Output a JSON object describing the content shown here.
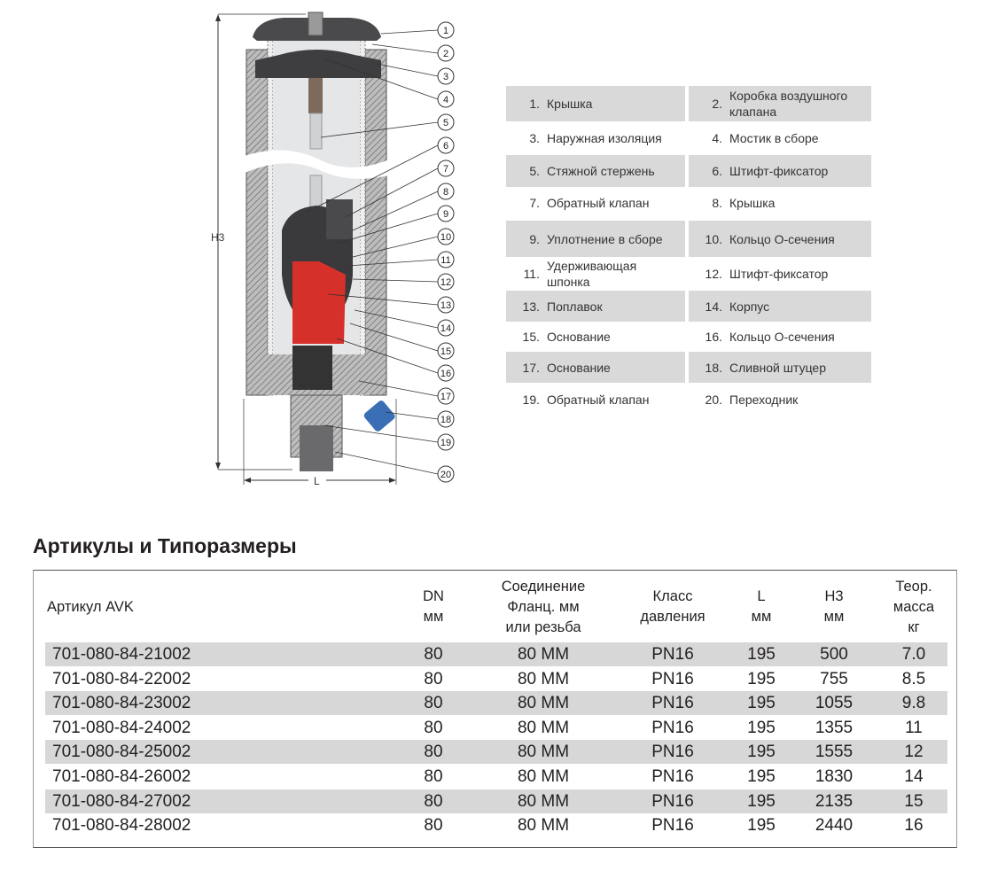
{
  "diagram": {
    "dimension_height_label": "H3",
    "dimension_length_label": "L",
    "callouts": [
      "1",
      "2",
      "3",
      "4",
      "5",
      "6",
      "7",
      "8",
      "9",
      "10",
      "11",
      "12",
      "13",
      "14",
      "15",
      "16",
      "17",
      "18",
      "19",
      "20"
    ],
    "colors": {
      "float": "#d6302b",
      "drain_fitting": "#3a6fb5",
      "body": "#3c3c3e",
      "insulation": "#9a9a9a"
    }
  },
  "legend": {
    "rows": [
      [
        {
          "num": "1.",
          "text": "Крышка"
        },
        {
          "num": "2.",
          "text": "Коробка воздушного клапана"
        }
      ],
      [
        {
          "num": "3.",
          "text": "Наружная изоляция"
        },
        {
          "num": "4.",
          "text": "Мостик в сборе"
        }
      ],
      [
        {
          "num": "5.",
          "text": "Стяжной стержень"
        },
        {
          "num": "6.",
          "text": "Штифт-фиксатор"
        }
      ],
      [
        {
          "num": "7.",
          "text": "Обратный клапан"
        },
        {
          "num": "8.",
          "text": "Крышка"
        }
      ],
      [
        {
          "num": "9.",
          "text": "Уплотнение в сборе"
        },
        {
          "num": "10.",
          "text": "Кольцо О-сечения"
        }
      ],
      [
        {
          "num": "11.",
          "text": "Удерживающая шпонка"
        },
        {
          "num": "12.",
          "text": "Штифт-фиксатор"
        }
      ],
      [
        {
          "num": "13.",
          "text": "Поплавок"
        },
        {
          "num": "14.",
          "text": "Корпус"
        }
      ],
      [
        {
          "num": "15.",
          "text": "Основание"
        },
        {
          "num": "16.",
          "text": "Кольцо О-сечения"
        }
      ],
      [
        {
          "num": "17.",
          "text": "Основание"
        },
        {
          "num": "18.",
          "text": "Сливной штуцер"
        }
      ],
      [
        {
          "num": "19.",
          "text": "Обратный клапан"
        },
        {
          "num": "20.",
          "text": "Переходник"
        }
      ]
    ]
  },
  "table": {
    "title": "Артикулы и Типоразмеры",
    "headers": [
      "Артикул AVK",
      "DN\nмм",
      "Соединение\nФланц. мм\nили резьба",
      "Класс\nдавления",
      "L\nмм",
      "H3\nмм",
      "Теор.\nмасса\nкг"
    ],
    "rows": [
      [
        "701-080-84-21002",
        "80",
        "80 MM",
        "PN16",
        "195",
        "500",
        "7.0"
      ],
      [
        "701-080-84-22002",
        "80",
        "80 MM",
        "PN16",
        "195",
        "755",
        "8.5"
      ],
      [
        "701-080-84-23002",
        "80",
        "80 MM",
        "PN16",
        "195",
        "1055",
        "9.8"
      ],
      [
        "701-080-84-24002",
        "80",
        "80 MM",
        "PN16",
        "195",
        "1355",
        "11"
      ],
      [
        "701-080-84-25002",
        "80",
        "80 MM",
        "PN16",
        "195",
        "1555",
        "12"
      ],
      [
        "701-080-84-26002",
        "80",
        "80 MM",
        "PN16",
        "195",
        "1830",
        "14"
      ],
      [
        "701-080-84-27002",
        "80",
        "80 MM",
        "PN16",
        "195",
        "2135",
        "15"
      ],
      [
        "701-080-84-28002",
        "80",
        "80 MM",
        "PN16",
        "195",
        "2440",
        "16"
      ]
    ]
  }
}
